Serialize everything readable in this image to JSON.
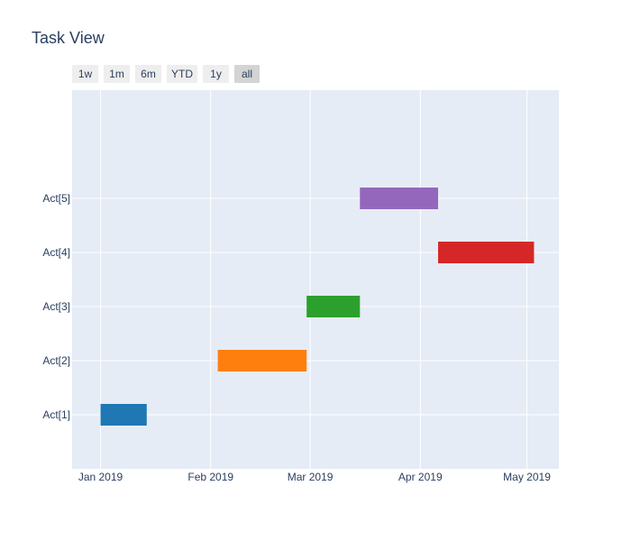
{
  "title": "Task View",
  "range_buttons": [
    {
      "label": "1w",
      "active": false
    },
    {
      "label": "1m",
      "active": false
    },
    {
      "label": "6m",
      "active": false
    },
    {
      "label": "YTD",
      "active": false
    },
    {
      "label": "1y",
      "active": false
    },
    {
      "label": "all",
      "active": true
    }
  ],
  "colors": {
    "plot_bg": "#e5ecf6",
    "grid": "#ffffff",
    "text": "#2a3f5f"
  },
  "chart_data": {
    "type": "gantt",
    "title": "Task View",
    "xlabel": "",
    "ylabel": "",
    "x_axis": {
      "type": "date",
      "range": [
        "2018-12-24",
        "2019-05-10"
      ],
      "ticks": [
        {
          "date": "2019-01-01",
          "label": "Jan 2019"
        },
        {
          "date": "2019-02-01",
          "label": "Feb 2019"
        },
        {
          "date": "2019-03-01",
          "label": "Mar 2019"
        },
        {
          "date": "2019-04-01",
          "label": "Apr 2019"
        },
        {
          "date": "2019-05-01",
          "label": "May 2019"
        }
      ]
    },
    "y_axis": {
      "categories": [
        "Act[1]",
        "Act[2]",
        "Act[3]",
        "Act[4]",
        "Act[5]"
      ]
    },
    "grid": true,
    "tasks": [
      {
        "task": "Act[1]",
        "start": "2019-01-01",
        "finish": "2019-01-14",
        "color": "#1f77b4"
      },
      {
        "task": "Act[2]",
        "start": "2019-02-03",
        "finish": "2019-02-28",
        "color": "#ff7f0e"
      },
      {
        "task": "Act[3]",
        "start": "2019-02-28",
        "finish": "2019-03-15",
        "color": "#2ca02c"
      },
      {
        "task": "Act[4]",
        "start": "2019-04-06",
        "finish": "2019-05-03",
        "color": "#d62728"
      },
      {
        "task": "Act[5]",
        "start": "2019-03-15",
        "finish": "2019-04-06",
        "color": "#9467bd"
      }
    ]
  }
}
